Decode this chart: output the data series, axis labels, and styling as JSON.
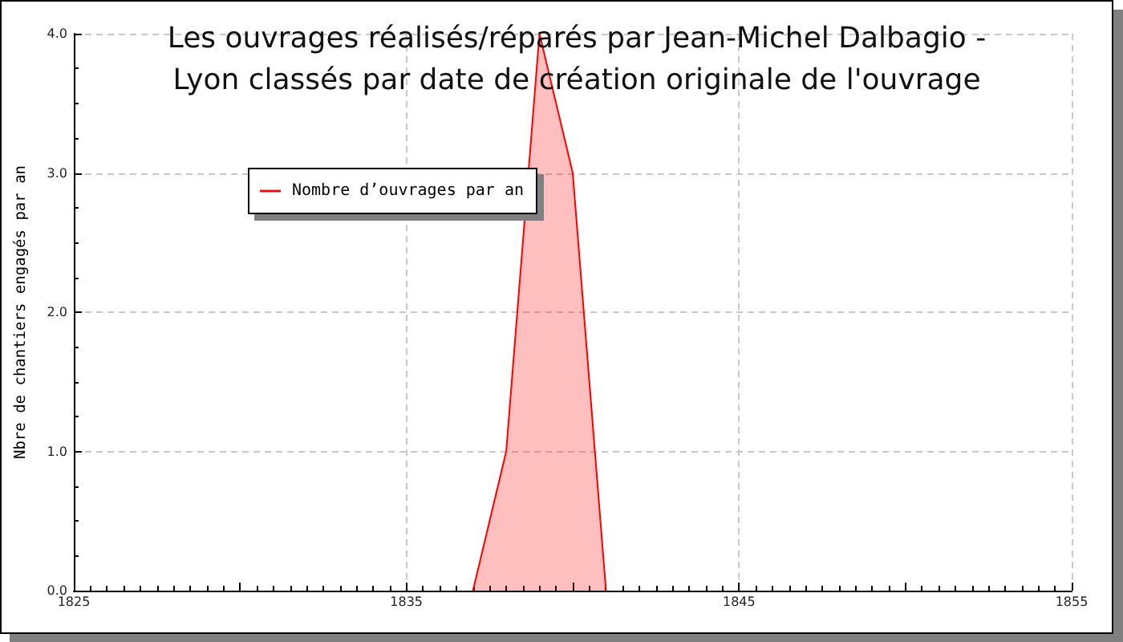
{
  "chart_data": {
    "type": "area",
    "title": "Les ouvrages réalisés/réparés par Jean-Michel Dalbagio -\nLyon classés par date de création originale de l'ouvrage",
    "ylabel": "Nbre de chantiers engagés par an",
    "x": [
      1837,
      1838,
      1839,
      1840,
      1841
    ],
    "series": [
      {
        "name": "Nombre d’ouvrages par an",
        "color": "#ff0000",
        "values": [
          0,
          1,
          4,
          3,
          0
        ]
      }
    ],
    "xlim": [
      1825,
      1855
    ],
    "xticks": [
      1825,
      {
        "value": 1830,
        "label": null
      },
      1835,
      {
        "value": 1840,
        "label": null
      },
      1845,
      {
        "value": 1850,
        "label": null
      },
      1855
    ],
    "ylim": [
      0,
      4
    ],
    "yticks": [
      {
        "value": 0,
        "label": "0.0"
      },
      {
        "value": 1,
        "label": "1.0"
      },
      {
        "value": 2,
        "label": "2.0"
      },
      {
        "value": 3,
        "label": "3.0"
      },
      {
        "value": 4,
        "label": "4.0"
      }
    ],
    "grid": true,
    "legend": "top left",
    "marker": "none"
  }
}
